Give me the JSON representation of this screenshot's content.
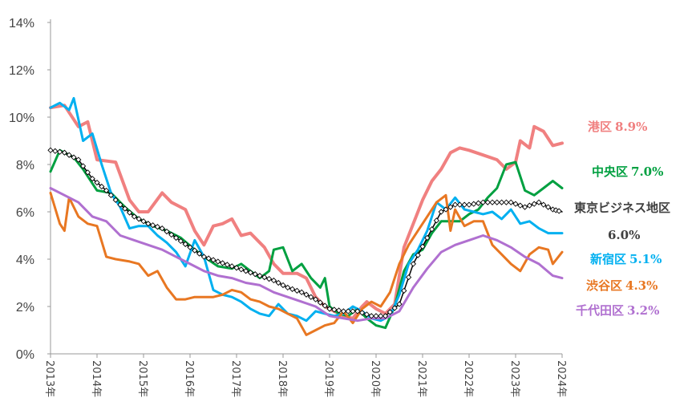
{
  "chart_data": {
    "type": "line",
    "title": "",
    "xlabel": "",
    "ylabel": "",
    "xlim": [
      2013,
      2024
    ],
    "ylim": [
      0,
      14
    ],
    "y_unit": "%",
    "y_ticks": [
      "0%",
      "2%",
      "4%",
      "6%",
      "8%",
      "10%",
      "12%",
      "14%"
    ],
    "x_ticks": [
      "2013年",
      "2014年",
      "2015年",
      "2016年",
      "2017年",
      "2018年",
      "2019年",
      "2020年",
      "2021年",
      "2022年",
      "2023年",
      "2024年"
    ],
    "grid": false,
    "legend": "direct labels at right end of lines",
    "series": [
      {
        "name": "港区",
        "value_label": "8.9%",
        "color": "#f08080",
        "points": [
          [
            2013.0,
            10.4
          ],
          [
            2013.3,
            10.5
          ],
          [
            2013.6,
            9.6
          ],
          [
            2013.8,
            9.8
          ],
          [
            2014.0,
            8.2
          ],
          [
            2014.4,
            8.1
          ],
          [
            2014.7,
            6.5
          ],
          [
            2014.9,
            6.0
          ],
          [
            2015.1,
            6.0
          ],
          [
            2015.4,
            6.8
          ],
          [
            2015.6,
            6.4
          ],
          [
            2015.9,
            6.1
          ],
          [
            2016.1,
            5.2
          ],
          [
            2016.3,
            4.6
          ],
          [
            2016.5,
            5.4
          ],
          [
            2016.7,
            5.5
          ],
          [
            2016.9,
            5.7
          ],
          [
            2017.1,
            5.0
          ],
          [
            2017.3,
            5.1
          ],
          [
            2017.6,
            4.5
          ],
          [
            2017.8,
            3.8
          ],
          [
            2018.0,
            3.4
          ],
          [
            2018.3,
            3.4
          ],
          [
            2018.5,
            3.2
          ],
          [
            2018.7,
            2.4
          ],
          [
            2018.9,
            2.0
          ],
          [
            2019.0,
            1.9
          ],
          [
            2019.3,
            1.6
          ],
          [
            2019.5,
            1.5
          ],
          [
            2019.7,
            2.0
          ],
          [
            2019.8,
            2.2
          ],
          [
            2020.0,
            1.9
          ],
          [
            2020.2,
            1.7
          ],
          [
            2020.4,
            2.1
          ],
          [
            2020.6,
            4.5
          ],
          [
            2020.8,
            5.5
          ],
          [
            2021.0,
            6.5
          ],
          [
            2021.2,
            7.3
          ],
          [
            2021.4,
            7.8
          ],
          [
            2021.6,
            8.5
          ],
          [
            2021.8,
            8.7
          ],
          [
            2022.0,
            8.6
          ],
          [
            2022.3,
            8.4
          ],
          [
            2022.6,
            8.2
          ],
          [
            2022.8,
            7.8
          ],
          [
            2023.0,
            8.1
          ],
          [
            2023.1,
            9.0
          ],
          [
            2023.3,
            8.7
          ],
          [
            2023.4,
            9.6
          ],
          [
            2023.6,
            9.4
          ],
          [
            2023.8,
            8.8
          ],
          [
            2024.0,
            8.9
          ]
        ]
      },
      {
        "name": "中央区",
        "value_label": "7.0%",
        "color": "#00a040",
        "points": [
          [
            2013.0,
            7.7
          ],
          [
            2013.2,
            8.6
          ],
          [
            2013.5,
            8.3
          ],
          [
            2013.7,
            7.8
          ],
          [
            2014.0,
            6.9
          ],
          [
            2014.3,
            6.8
          ],
          [
            2014.6,
            6.2
          ],
          [
            2014.9,
            5.7
          ],
          [
            2015.2,
            5.4
          ],
          [
            2015.5,
            5.2
          ],
          [
            2015.8,
            4.9
          ],
          [
            2016.1,
            4.4
          ],
          [
            2016.3,
            4.1
          ],
          [
            2016.6,
            3.7
          ],
          [
            2016.9,
            3.6
          ],
          [
            2017.1,
            3.8
          ],
          [
            2017.3,
            3.5
          ],
          [
            2017.5,
            3.2
          ],
          [
            2017.7,
            3.5
          ],
          [
            2017.8,
            4.4
          ],
          [
            2018.0,
            4.5
          ],
          [
            2018.2,
            3.5
          ],
          [
            2018.4,
            3.8
          ],
          [
            2018.6,
            3.2
          ],
          [
            2018.8,
            2.8
          ],
          [
            2018.9,
            3.2
          ],
          [
            2019.0,
            2.0
          ],
          [
            2019.2,
            1.7
          ],
          [
            2019.4,
            1.6
          ],
          [
            2019.6,
            1.9
          ],
          [
            2019.8,
            1.5
          ],
          [
            2020.0,
            1.2
          ],
          [
            2020.2,
            1.1
          ],
          [
            2020.4,
            2.0
          ],
          [
            2020.6,
            3.5
          ],
          [
            2020.8,
            4.2
          ],
          [
            2021.0,
            4.4
          ],
          [
            2021.2,
            5.1
          ],
          [
            2021.4,
            5.6
          ],
          [
            2021.6,
            5.6
          ],
          [
            2021.8,
            5.6
          ],
          [
            2022.0,
            5.9
          ],
          [
            2022.2,
            6.1
          ],
          [
            2022.4,
            6.6
          ],
          [
            2022.6,
            7.0
          ],
          [
            2022.8,
            8.0
          ],
          [
            2023.0,
            8.1
          ],
          [
            2023.2,
            6.9
          ],
          [
            2023.4,
            6.7
          ],
          [
            2023.6,
            7.0
          ],
          [
            2023.8,
            7.3
          ],
          [
            2024.0,
            7.0
          ]
        ]
      },
      {
        "name": "東京ビジネス地区",
        "value_label": "6.0%",
        "color": "#000000",
        "marker": "diamond",
        "points": [
          [
            2013.0,
            8.6
          ],
          [
            2013.3,
            8.5
          ],
          [
            2013.6,
            8.2
          ],
          [
            2013.9,
            7.4
          ],
          [
            2014.2,
            6.9
          ],
          [
            2014.5,
            6.3
          ],
          [
            2014.8,
            5.8
          ],
          [
            2015.1,
            5.5
          ],
          [
            2015.4,
            5.3
          ],
          [
            2015.7,
            4.9
          ],
          [
            2016.0,
            4.5
          ],
          [
            2016.3,
            4.1
          ],
          [
            2016.6,
            3.9
          ],
          [
            2016.9,
            3.7
          ],
          [
            2017.2,
            3.5
          ],
          [
            2017.5,
            3.3
          ],
          [
            2017.8,
            3.1
          ],
          [
            2018.1,
            2.8
          ],
          [
            2018.4,
            2.6
          ],
          [
            2018.7,
            2.3
          ],
          [
            2019.0,
            1.9
          ],
          [
            2019.3,
            1.8
          ],
          [
            2019.6,
            1.8
          ],
          [
            2019.9,
            1.6
          ],
          [
            2020.2,
            1.6
          ],
          [
            2020.5,
            2.1
          ],
          [
            2020.8,
            3.8
          ],
          [
            2021.1,
            4.9
          ],
          [
            2021.4,
            6.0
          ],
          [
            2021.7,
            6.3
          ],
          [
            2022.0,
            6.3
          ],
          [
            2022.3,
            6.4
          ],
          [
            2022.6,
            6.4
          ],
          [
            2022.9,
            6.4
          ],
          [
            2023.2,
            6.2
          ],
          [
            2023.5,
            6.4
          ],
          [
            2023.8,
            6.1
          ],
          [
            2024.0,
            6.0
          ]
        ]
      },
      {
        "name": "新宿区",
        "value_label": "5.1%",
        "color": "#00b0f0",
        "points": [
          [
            2013.0,
            10.4
          ],
          [
            2013.2,
            10.6
          ],
          [
            2013.4,
            10.3
          ],
          [
            2013.5,
            10.8
          ],
          [
            2013.7,
            9.0
          ],
          [
            2013.9,
            9.3
          ],
          [
            2014.1,
            8.0
          ],
          [
            2014.3,
            6.8
          ],
          [
            2014.5,
            6.2
          ],
          [
            2014.7,
            5.3
          ],
          [
            2014.9,
            5.4
          ],
          [
            2015.1,
            5.4
          ],
          [
            2015.3,
            5.0
          ],
          [
            2015.5,
            4.7
          ],
          [
            2015.7,
            4.3
          ],
          [
            2015.9,
            3.7
          ],
          [
            2016.1,
            4.8
          ],
          [
            2016.3,
            4.1
          ],
          [
            2016.5,
            2.7
          ],
          [
            2016.7,
            2.5
          ],
          [
            2016.9,
            2.4
          ],
          [
            2017.1,
            2.2
          ],
          [
            2017.3,
            1.9
          ],
          [
            2017.5,
            1.7
          ],
          [
            2017.7,
            1.6
          ],
          [
            2017.9,
            2.1
          ],
          [
            2018.1,
            1.7
          ],
          [
            2018.3,
            1.6
          ],
          [
            2018.5,
            1.4
          ],
          [
            2018.7,
            1.8
          ],
          [
            2018.9,
            1.7
          ],
          [
            2019.1,
            1.6
          ],
          [
            2019.3,
            1.7
          ],
          [
            2019.5,
            2.0
          ],
          [
            2019.7,
            1.8
          ],
          [
            2019.9,
            1.5
          ],
          [
            2020.1,
            1.4
          ],
          [
            2020.3,
            1.6
          ],
          [
            2020.5,
            2.5
          ],
          [
            2020.7,
            3.8
          ],
          [
            2020.9,
            4.4
          ],
          [
            2021.1,
            5.2
          ],
          [
            2021.3,
            6.4
          ],
          [
            2021.5,
            6.1
          ],
          [
            2021.7,
            6.6
          ],
          [
            2021.9,
            6.1
          ],
          [
            2022.1,
            6.0
          ],
          [
            2022.3,
            5.9
          ],
          [
            2022.5,
            6.0
          ],
          [
            2022.7,
            5.7
          ],
          [
            2022.9,
            6.1
          ],
          [
            2023.1,
            5.5
          ],
          [
            2023.3,
            5.6
          ],
          [
            2023.5,
            5.3
          ],
          [
            2023.7,
            5.1
          ],
          [
            2024.0,
            5.1
          ]
        ]
      },
      {
        "name": "渋谷区",
        "value_label": "4.3%",
        "color": "#e87722",
        "points": [
          [
            2013.0,
            6.8
          ],
          [
            2013.2,
            5.5
          ],
          [
            2013.3,
            5.2
          ],
          [
            2013.4,
            6.6
          ],
          [
            2013.6,
            5.8
          ],
          [
            2013.8,
            5.5
          ],
          [
            2014.0,
            5.4
          ],
          [
            2014.2,
            4.1
          ],
          [
            2014.4,
            4.0
          ],
          [
            2014.7,
            3.9
          ],
          [
            2014.9,
            3.8
          ],
          [
            2015.1,
            3.3
          ],
          [
            2015.3,
            3.5
          ],
          [
            2015.5,
            2.8
          ],
          [
            2015.7,
            2.3
          ],
          [
            2015.9,
            2.3
          ],
          [
            2016.1,
            2.4
          ],
          [
            2016.3,
            2.4
          ],
          [
            2016.5,
            2.4
          ],
          [
            2016.7,
            2.5
          ],
          [
            2016.9,
            2.7
          ],
          [
            2017.1,
            2.6
          ],
          [
            2017.3,
            2.3
          ],
          [
            2017.5,
            2.2
          ],
          [
            2017.7,
            2.0
          ],
          [
            2017.9,
            1.9
          ],
          [
            2018.1,
            1.7
          ],
          [
            2018.3,
            1.5
          ],
          [
            2018.5,
            0.8
          ],
          [
            2018.7,
            1.0
          ],
          [
            2018.9,
            1.2
          ],
          [
            2019.1,
            1.3
          ],
          [
            2019.3,
            1.8
          ],
          [
            2019.5,
            1.3
          ],
          [
            2019.7,
            1.9
          ],
          [
            2019.9,
            2.2
          ],
          [
            2020.1,
            2.0
          ],
          [
            2020.3,
            2.6
          ],
          [
            2020.5,
            3.8
          ],
          [
            2020.7,
            4.6
          ],
          [
            2020.9,
            5.2
          ],
          [
            2021.1,
            5.8
          ],
          [
            2021.3,
            6.4
          ],
          [
            2021.5,
            6.7
          ],
          [
            2021.6,
            5.2
          ],
          [
            2021.7,
            6.1
          ],
          [
            2021.9,
            5.4
          ],
          [
            2022.1,
            5.6
          ],
          [
            2022.3,
            5.6
          ],
          [
            2022.5,
            4.6
          ],
          [
            2022.7,
            4.2
          ],
          [
            2022.9,
            3.8
          ],
          [
            2023.1,
            3.5
          ],
          [
            2023.3,
            4.2
          ],
          [
            2023.5,
            4.5
          ],
          [
            2023.7,
            4.4
          ],
          [
            2023.8,
            3.8
          ],
          [
            2024.0,
            4.3
          ]
        ]
      },
      {
        "name": "千代田区",
        "value_label": "3.2%",
        "color": "#b070d0",
        "points": [
          [
            2013.0,
            7.0
          ],
          [
            2013.3,
            6.7
          ],
          [
            2013.6,
            6.4
          ],
          [
            2013.9,
            5.8
          ],
          [
            2014.2,
            5.6
          ],
          [
            2014.5,
            5.0
          ],
          [
            2014.8,
            4.8
          ],
          [
            2015.1,
            4.6
          ],
          [
            2015.4,
            4.4
          ],
          [
            2015.7,
            4.1
          ],
          [
            2016.0,
            3.8
          ],
          [
            2016.3,
            3.5
          ],
          [
            2016.6,
            3.3
          ],
          [
            2016.9,
            3.2
          ],
          [
            2017.2,
            3.0
          ],
          [
            2017.5,
            2.9
          ],
          [
            2017.8,
            2.6
          ],
          [
            2018.1,
            2.4
          ],
          [
            2018.4,
            2.2
          ],
          [
            2018.7,
            2.0
          ],
          [
            2019.0,
            1.6
          ],
          [
            2019.3,
            1.5
          ],
          [
            2019.6,
            1.4
          ],
          [
            2019.9,
            1.5
          ],
          [
            2020.2,
            1.5
          ],
          [
            2020.5,
            1.8
          ],
          [
            2020.8,
            2.8
          ],
          [
            2021.1,
            3.6
          ],
          [
            2021.4,
            4.3
          ],
          [
            2021.7,
            4.6
          ],
          [
            2022.0,
            4.8
          ],
          [
            2022.3,
            5.0
          ],
          [
            2022.6,
            4.8
          ],
          [
            2022.9,
            4.5
          ],
          [
            2023.2,
            4.1
          ],
          [
            2023.5,
            3.8
          ],
          [
            2023.8,
            3.3
          ],
          [
            2024.0,
            3.2
          ]
        ]
      }
    ]
  }
}
